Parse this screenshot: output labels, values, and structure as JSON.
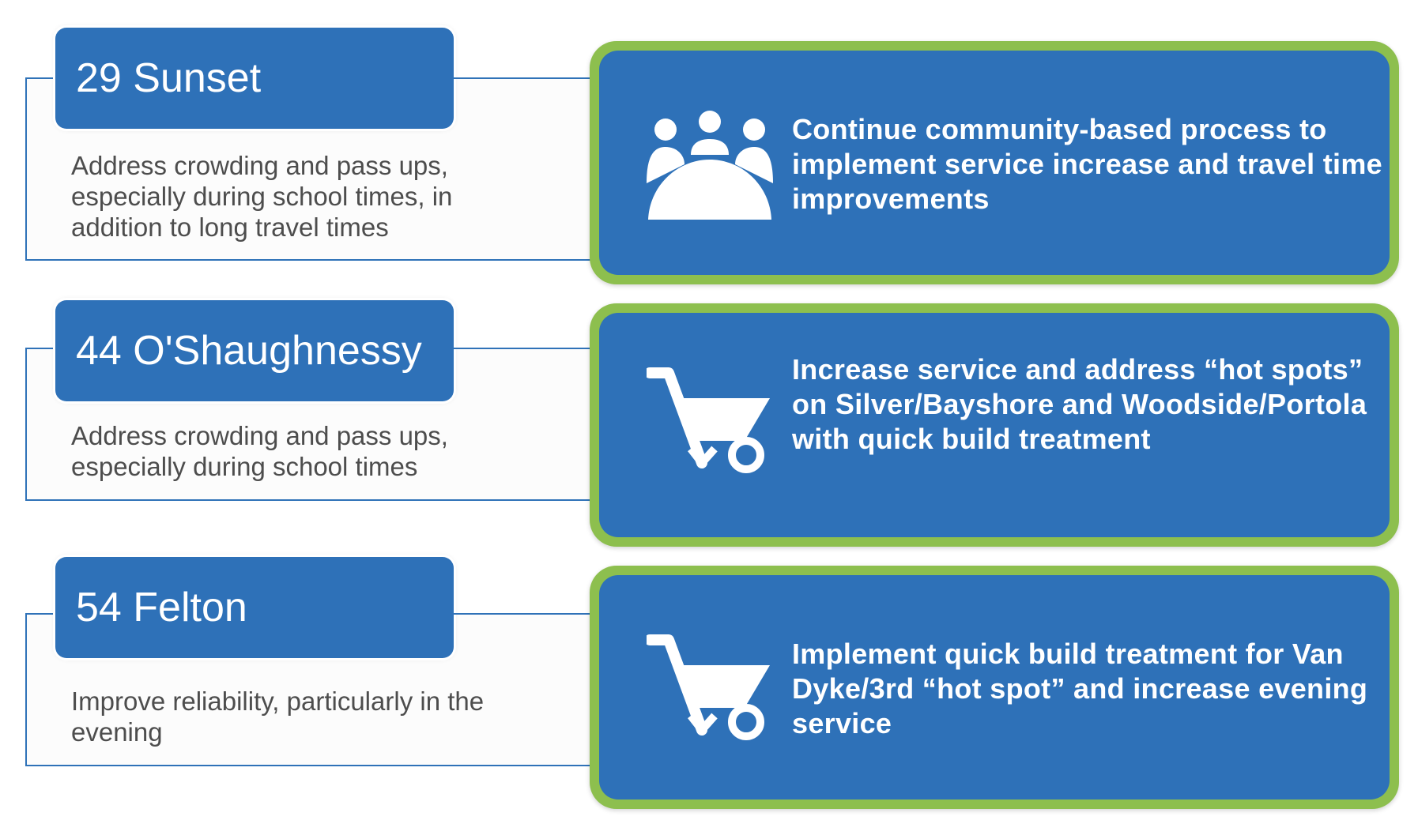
{
  "rows": [
    {
      "route": "29 Sunset",
      "issue": "Address crowding and pass ups, especially during school times, in addition to long travel times",
      "icon": "people-group-icon",
      "action": "Continue community-based process to implement service increase and travel time improvements"
    },
    {
      "route": "44 O'Shaughnessy",
      "issue": "Address crowding and pass ups, especially during school times",
      "icon": "wheelbarrow-icon",
      "action": "Increase service and address “hot spots” on Silver/Bayshore and Woodside/Portola  with quick build treatment"
    },
    {
      "route": "54 Felton",
      "issue": "Improve reliability, particularly in the evening",
      "icon": "wheelbarrow-icon",
      "action": "Implement quick build treatment for Van Dyke/3rd “hot spot” and increase evening service"
    }
  ],
  "colors": {
    "primary_blue": "#2e71b8",
    "accent_green": "#8dbf4e",
    "text_gray": "#4d4d4d"
  }
}
